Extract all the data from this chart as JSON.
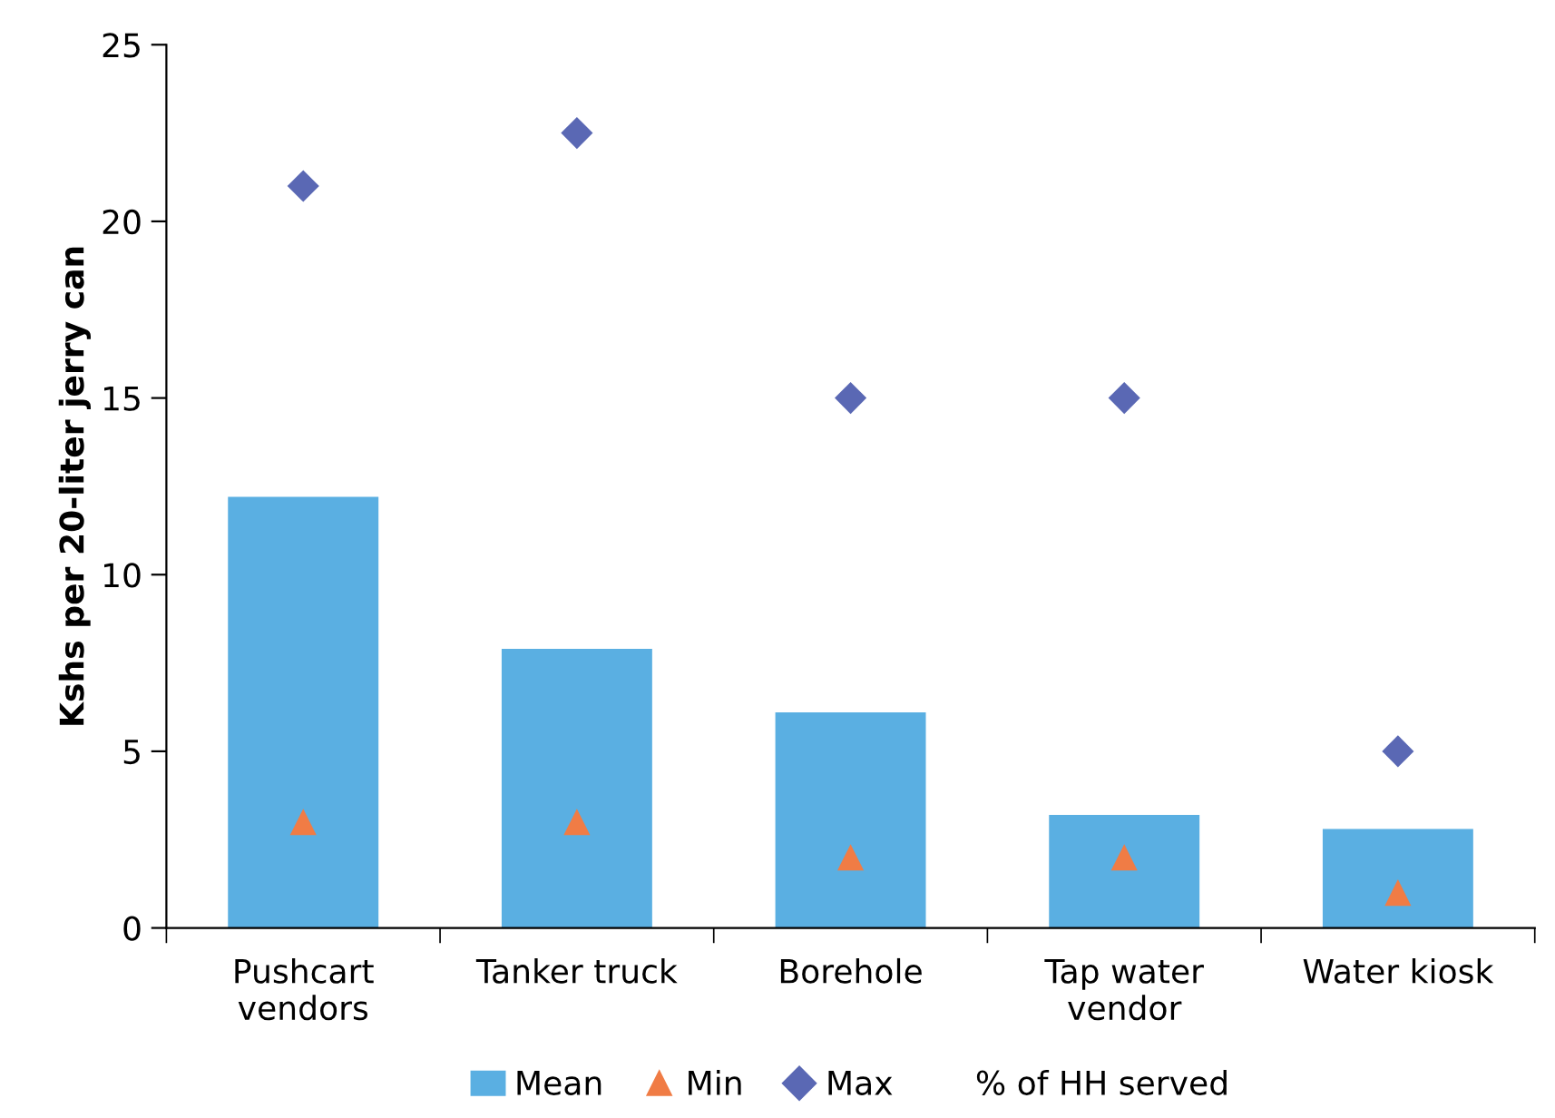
{
  "chart_data": {
    "type": "bar",
    "ylabel": "Kshs per 20-liter jerry can",
    "categories": [
      "Pushcart\nvendors",
      "Tanker truck",
      "Borehole",
      "Tap water\nvendor",
      "Water kiosk"
    ],
    "series": [
      {
        "name": "Mean",
        "color": "#5aafe2",
        "values": [
          12.2,
          7.9,
          6.1,
          3.2,
          2.8
        ]
      },
      {
        "name": "Min",
        "type": "scatter",
        "marker": "triangle",
        "color": "#f07c45",
        "values": [
          3,
          3,
          2,
          2,
          1
        ]
      },
      {
        "name": "Max",
        "type": "scatter",
        "marker": "diamond",
        "color": "#5a68b4",
        "values": [
          21,
          22.5,
          15,
          15,
          5
        ]
      },
      {
        "name": "% of HH served",
        "type": "scatter",
        "marker": "none",
        "values": [
          null,
          null,
          null,
          null,
          null
        ]
      }
    ],
    "ylim": [
      0,
      25
    ],
    "yticks": [
      0,
      5,
      10,
      15,
      20,
      25
    ],
    "grid": false,
    "legend": "bottom"
  }
}
